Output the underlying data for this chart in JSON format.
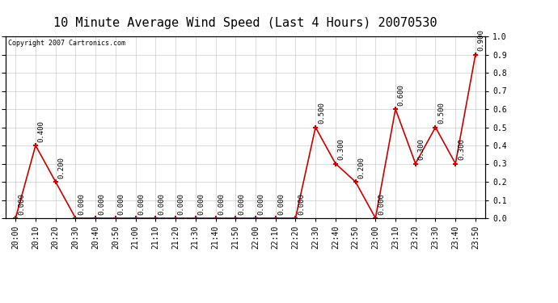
{
  "title": "10 Minute Average Wind Speed (Last 4 Hours) 20070530",
  "copyright_text": "Copyright 2007 Cartronics.com",
  "x_labels": [
    "20:00",
    "20:10",
    "20:20",
    "20:30",
    "20:40",
    "20:50",
    "21:00",
    "21:10",
    "21:20",
    "21:30",
    "21:40",
    "21:50",
    "22:00",
    "22:10",
    "22:20",
    "22:30",
    "22:40",
    "22:50",
    "23:00",
    "23:10",
    "23:20",
    "23:30",
    "23:40",
    "23:50"
  ],
  "y_values": [
    0.0,
    0.4,
    0.2,
    0.0,
    0.0,
    0.0,
    0.0,
    0.0,
    0.0,
    0.0,
    0.0,
    0.0,
    0.0,
    0.0,
    0.0,
    0.5,
    0.3,
    0.2,
    0.0,
    0.6,
    0.3,
    0.5,
    0.3,
    0.9
  ],
  "line_color": "#cc0000",
  "marker_color": "#cc0000",
  "background_color": "#ffffff",
  "grid_color": "#cccccc",
  "title_fontsize": 11,
  "label_fontsize": 7,
  "annotation_fontsize": 6.5,
  "yticks": [
    0.0,
    0.1,
    0.2,
    0.3,
    0.4,
    0.5,
    0.6,
    0.7,
    0.8,
    0.9,
    1.0
  ]
}
